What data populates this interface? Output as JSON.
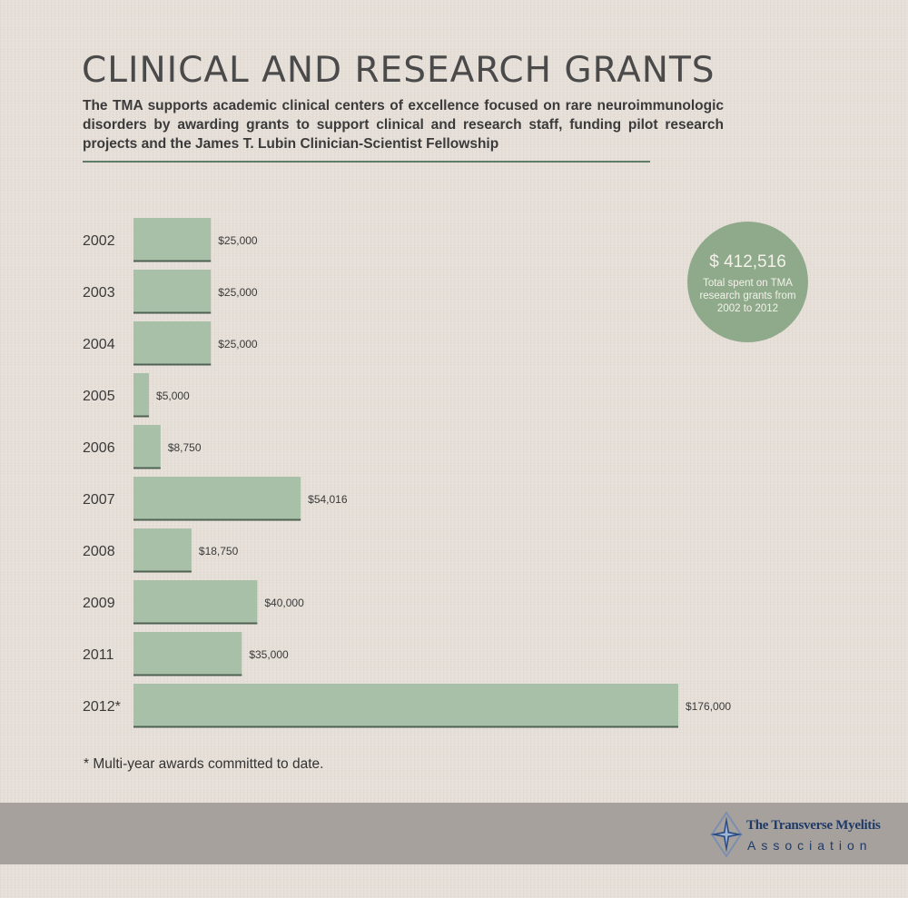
{
  "header": {
    "title": "CLINICAL AND RESEARCH GRANTS",
    "subtitle": "The TMA supports academic clinical centers of excellence focused on rare neuroimmunologic disorders by awarding grants to support clinical and research staff, funding pilot research projects and the James T. Lubin Clinician-Scientist Fellowship"
  },
  "chart_data": {
    "type": "bar",
    "orientation": "horizontal",
    "categories": [
      "2002",
      "2003",
      "2004",
      "2005",
      "2006",
      "2007",
      "2008",
      "2009",
      "2011",
      "2012*"
    ],
    "values": [
      25000,
      25000,
      25000,
      5000,
      8750,
      54016,
      18750,
      40000,
      35000,
      176000
    ],
    "value_labels": [
      "$25,000",
      "$25,000",
      "$25,000",
      "$5,000",
      "$8,750",
      "$54,016",
      "$18,750",
      "$40,000",
      "$35,000",
      "$176,000"
    ],
    "grid": false,
    "colors": {
      "bar": "#a9c0a8",
      "bar_edge": "#4f6153"
    }
  },
  "summary": {
    "amount": "$ 412,516",
    "text": "Total spent on TMA research grants from 2002 to 2012",
    "color": "#8eaa8b"
  },
  "footnote": "* Multi-year awards committed to date.",
  "footer": {
    "logo_name": "The Transverse Myelitis",
    "logo_association": "Association",
    "logo_icon": "compass-star-icon"
  }
}
